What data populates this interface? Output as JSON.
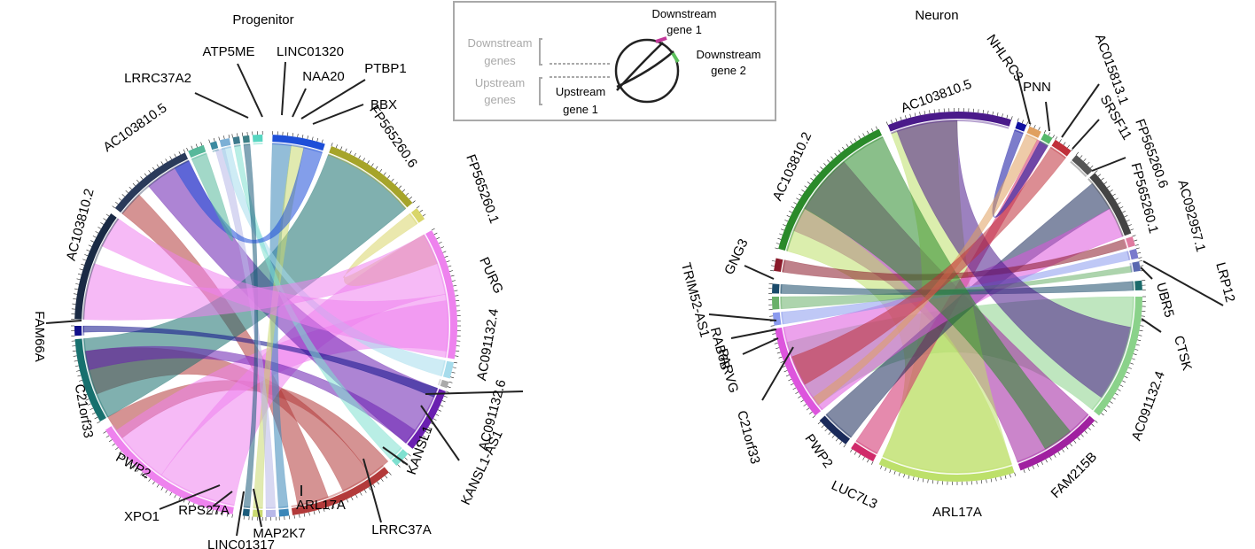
{
  "legend": {
    "downstream_gene_1": [
      "Downstream",
      "gene 1"
    ],
    "downstream_gene_2": [
      "Downstream",
      "gene 2"
    ],
    "downstream_genes": [
      "Downstream",
      "genes"
    ],
    "upstream_genes": [
      "Upstream",
      "genes"
    ],
    "upstream_gene_1": [
      "Upstream",
      "gene 1"
    ],
    "colors": {
      "downstream_gene_1": "#c2389a",
      "downstream_gene_2": "#5bbf5b"
    }
  },
  "panels": [
    {
      "id": "progenitor",
      "title": "Progenitor",
      "sectors": [
        {
          "name": "ATP5ME",
          "color": "#3b8aa0"
        },
        {
          "name": "LINC01320",
          "color": "#7cb0d6"
        },
        {
          "name": "NAA20",
          "color": "#3d7a8c"
        },
        {
          "name": "PTBP1",
          "color": "#3c7f86"
        },
        {
          "name": "BBX",
          "color": "#57d6c1"
        },
        {
          "name": "FP565260.6",
          "color": "#1e4fd8"
        },
        {
          "name": "FP565260.1",
          "color": "#a6a42a"
        },
        {
          "name": "PURG",
          "color": "#d9d66a"
        },
        {
          "name": "AC091132.4",
          "color": "#ee82ee"
        },
        {
          "name": "AC091132.6",
          "color": "#a6dcec"
        },
        {
          "name": "KANSL1-AS1",
          "color": "#aaaaaa"
        },
        {
          "name": "KANSL1",
          "color": "#6a1fb0"
        },
        {
          "name": "LRRC37A",
          "color": "#7fe0d0"
        },
        {
          "name": "ARL17A",
          "color": "#b33a3a"
        },
        {
          "name": "MAP2K7",
          "color": "#3b86b8"
        },
        {
          "name": "LINC01317",
          "color": "#b8b8e8"
        },
        {
          "name": "RPS27A",
          "color": "#c9d96f"
        },
        {
          "name": "XPO1",
          "color": "#1b5b7a"
        },
        {
          "name": "PWP2",
          "color": "#ee82ee"
        },
        {
          "name": "C21orf33",
          "color": "#17706e"
        },
        {
          "name": "FAM66A",
          "color": "#10108a"
        },
        {
          "name": "AC103810.2",
          "color": "#1a2a44"
        },
        {
          "name": "AC103810.5",
          "color": "#2a3a5a"
        },
        {
          "name": "LRRC37A2",
          "color": "#56b89a"
        }
      ]
    },
    {
      "id": "neuron",
      "title": "Neuron",
      "sectors": [
        {
          "name": "NHLRC3",
          "color": "#1010a0"
        },
        {
          "name": "PNN",
          "color": "#e0a060"
        },
        {
          "name": "AC015813.1",
          "color": "#56b86a"
        },
        {
          "name": "SRSF11",
          "color": "#c0303a"
        },
        {
          "name": "FP565260.6",
          "color": "#555555"
        },
        {
          "name": "FP565260.1",
          "color": "#444444"
        },
        {
          "name": "AC092957.1",
          "color": "#e07aa0"
        },
        {
          "name": "LRP12",
          "color": "#7a7acc"
        },
        {
          "name": "UBR5",
          "color": "#5a68b0"
        },
        {
          "name": "CTSK",
          "color": "#1a6a6a"
        },
        {
          "name": "AC091132.4",
          "color": "#8ad28a"
        },
        {
          "name": "FAM215B",
          "color": "#a020a0"
        },
        {
          "name": "ARL17A",
          "color": "#bde06a"
        },
        {
          "name": "LUC7L3",
          "color": "#d02a6a"
        },
        {
          "name": "PWP2",
          "color": "#1a2a5a"
        },
        {
          "name": "C21orf33",
          "color": "#dd55dd"
        },
        {
          "name": "PARVG",
          "color": "#8a9aee"
        },
        {
          "name": "RAB6B",
          "color": "#6ab06a"
        },
        {
          "name": "TRIM52-AS1",
          "color": "#1a4a6a"
        },
        {
          "name": "GNG3",
          "color": "#8a1a2a"
        },
        {
          "name": "AC103810.2",
          "color": "#2a8a2a"
        },
        {
          "name": "AC103810.5",
          "color": "#4a1a8a"
        }
      ]
    }
  ]
}
